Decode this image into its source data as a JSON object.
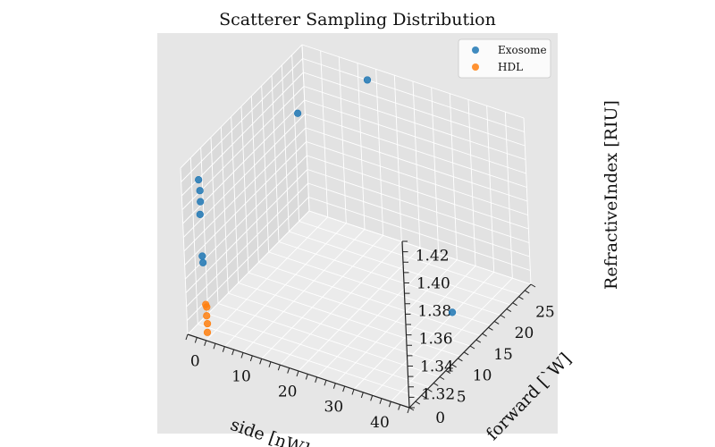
{
  "chart_data": {
    "type": "scatter3d",
    "title": "Scatterer Sampling Distribution",
    "xlabel": "side [nW]",
    "ylabel": "forward [`W]",
    "zlabel": "RefractiveIndex [RIU]",
    "x_ticks": [
      "0",
      "10",
      "20",
      "30",
      "40"
    ],
    "y_ticks": [
      "0",
      "5",
      "10",
      "15",
      "20",
      "25"
    ],
    "z_ticks": [
      "1.32",
      "1.34",
      "1.36",
      "1.38",
      "1.40",
      "1.42"
    ],
    "xlim": [
      -2,
      46
    ],
    "ylim": [
      -1,
      28
    ],
    "zlim": [
      1.31,
      1.43
    ],
    "grid": true,
    "legend_position": "top-right",
    "series": [
      {
        "name": "Exosome",
        "color": "#1f77b4",
        "points": [
          {
            "x": 0.5,
            "y": 0.4,
            "z": 1.42
          },
          {
            "x": 0.6,
            "y": 0.5,
            "z": 1.412
          },
          {
            "x": 0.6,
            "y": 0.5,
            "z": 1.404
          },
          {
            "x": 0.5,
            "y": 0.4,
            "z": 1.395
          },
          {
            "x": 0.6,
            "y": 0.4,
            "z": 1.365
          },
          {
            "x": 0.6,
            "y": 0.5,
            "z": 1.36
          },
          {
            "x": 6.0,
            "y": 18.0,
            "z": 1.42
          },
          {
            "x": 12.0,
            "y": 28.0,
            "z": 1.42
          },
          {
            "x": 40.0,
            "y": 16.0,
            "z": 1.32
          }
        ]
      },
      {
        "name": "HDL",
        "color": "#ff7f0e",
        "points": [
          {
            "x": 0.8,
            "y": 0.5,
            "z": 1.33
          },
          {
            "x": 0.9,
            "y": 0.6,
            "z": 1.328
          },
          {
            "x": 0.9,
            "y": 0.5,
            "z": 1.322
          },
          {
            "x": 0.9,
            "y": 0.6,
            "z": 1.316
          },
          {
            "x": 0.9,
            "y": 0.5,
            "z": 1.31
          }
        ]
      }
    ]
  }
}
